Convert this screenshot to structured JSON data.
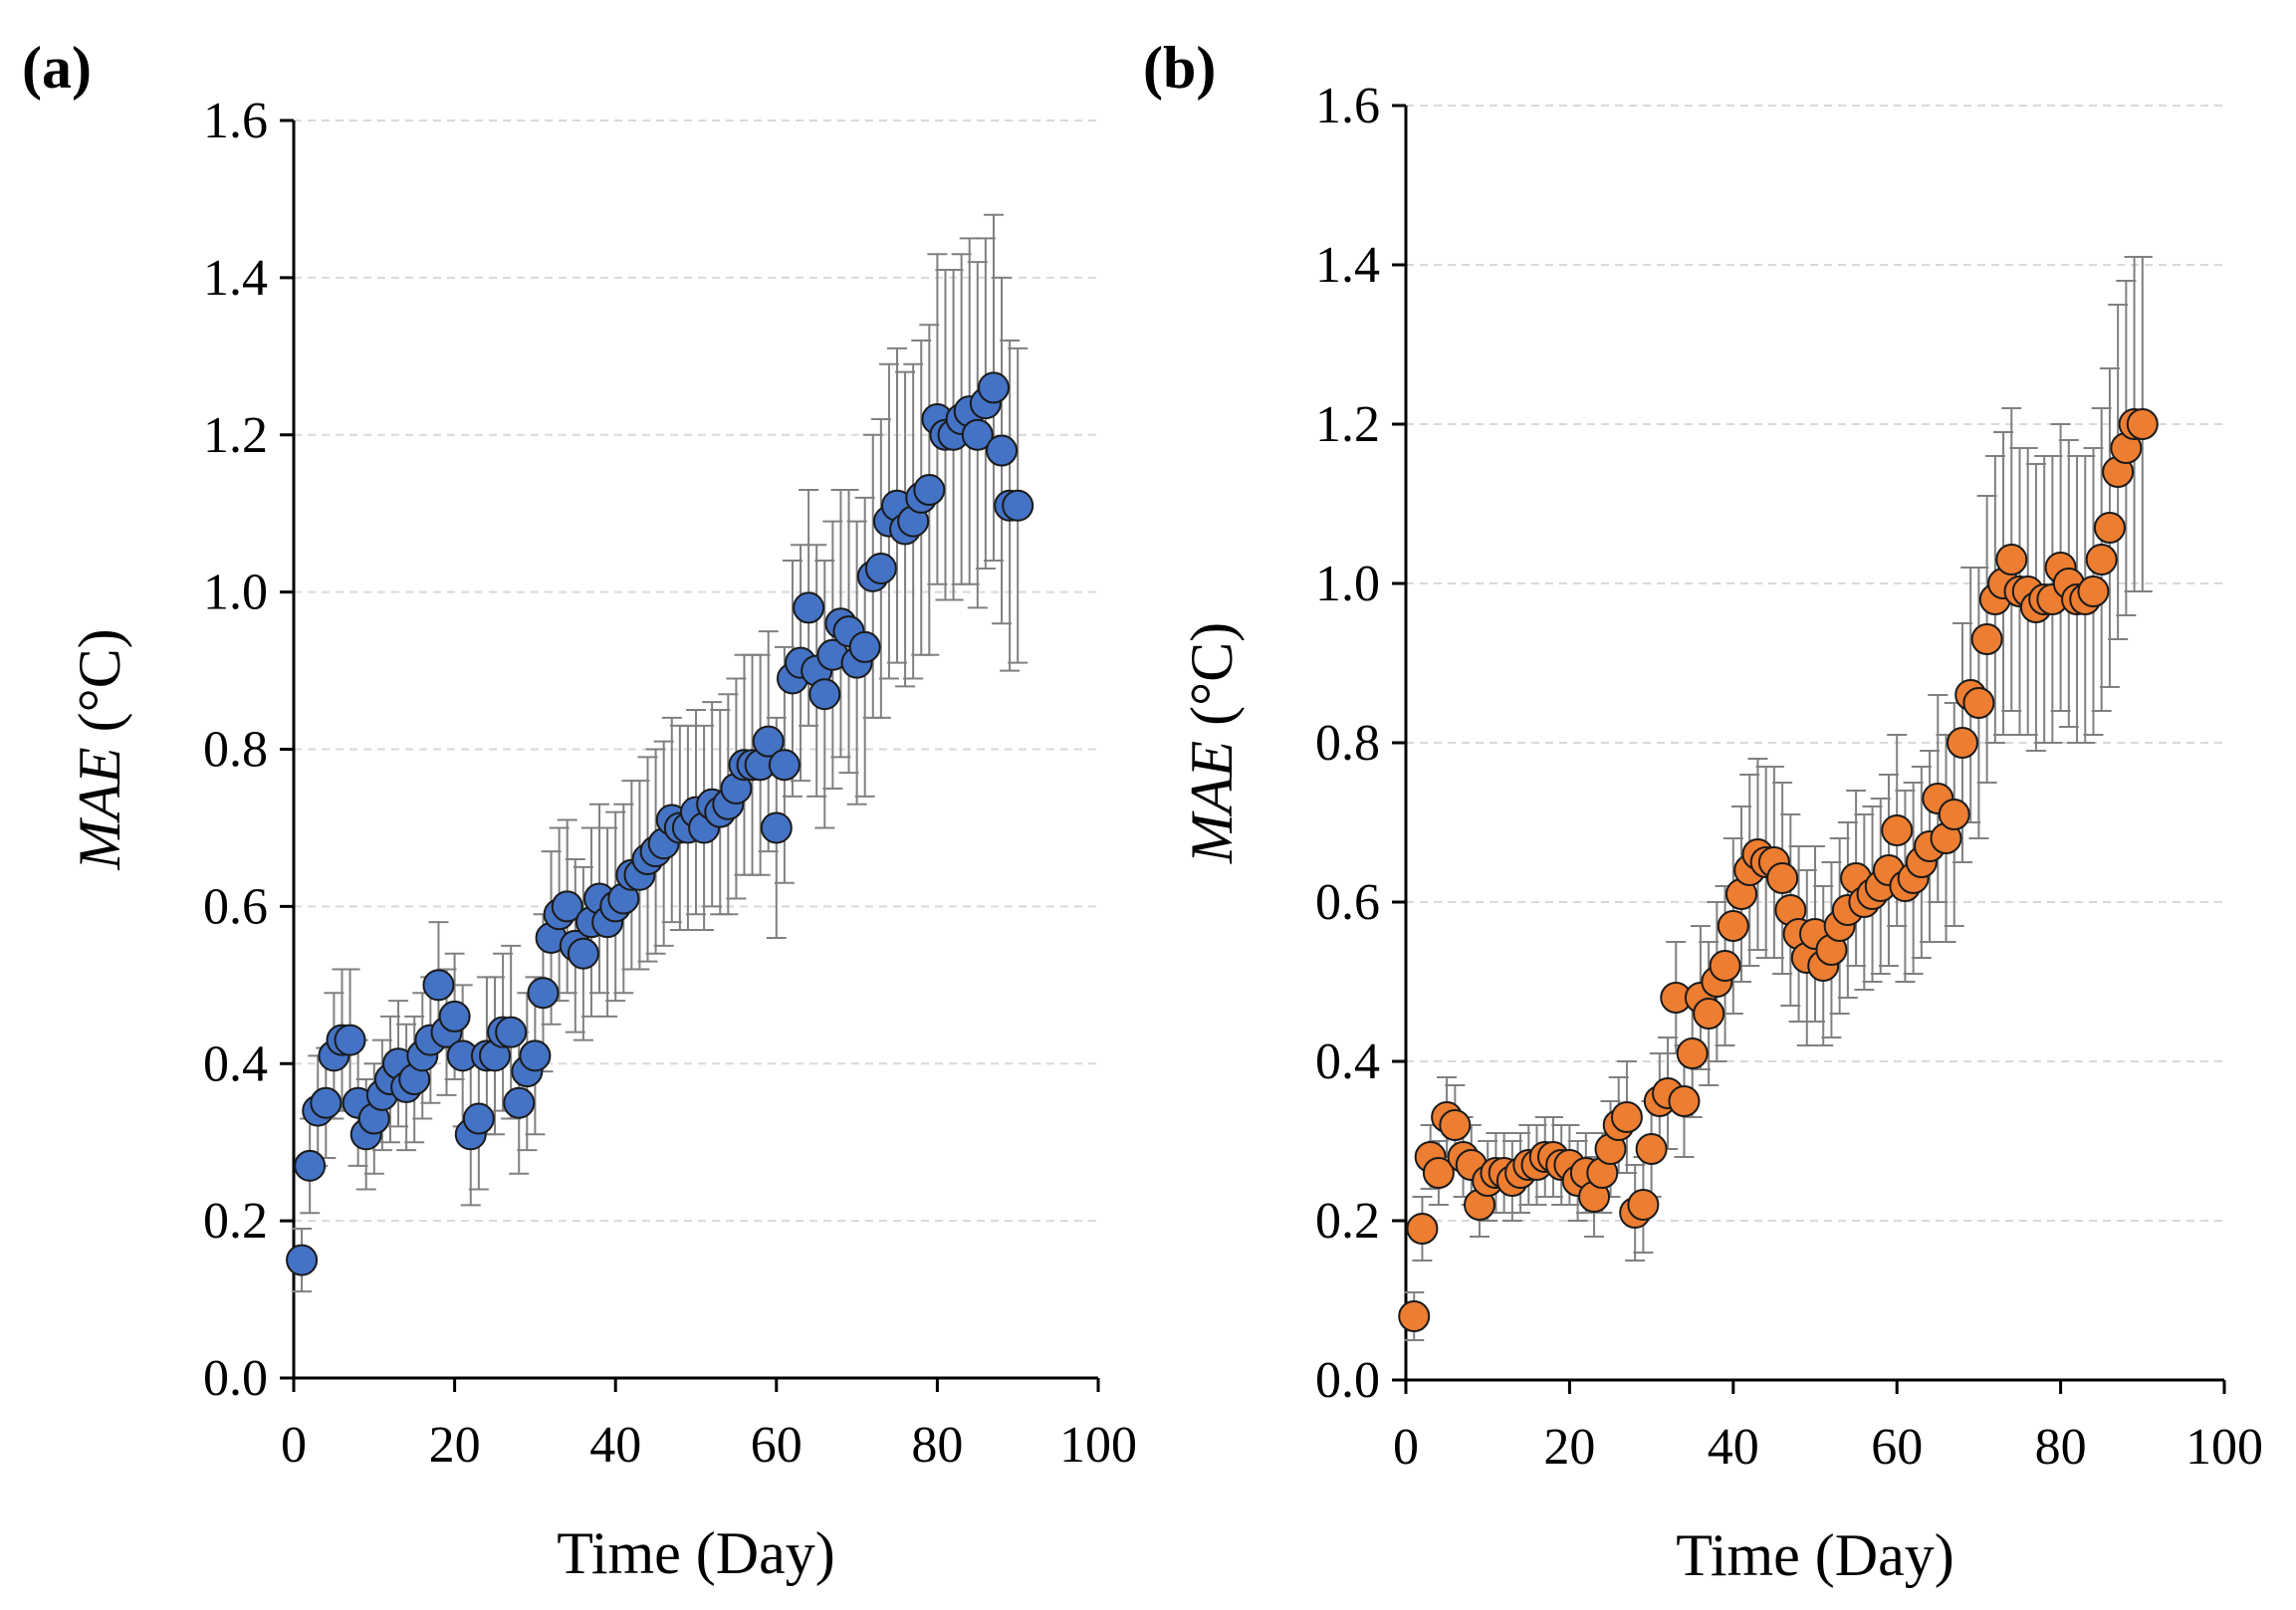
{
  "colors": {
    "series_a": "#4472C4",
    "series_b": "#ED7D31",
    "marker_edge": "#1a1a1a",
    "error_bar": "#808080",
    "grid": "#d9d9d9",
    "axis": "#000000"
  },
  "chart_data": [
    {
      "type": "scatter",
      "panel_label": "(a)",
      "xlabel": "Time (Day)",
      "ylabel_var": "MAE",
      "ylabel_unit": " (°C)",
      "xlim": [
        0,
        100
      ],
      "ylim": [
        0,
        1.6
      ],
      "xticks": [
        "0",
        "20",
        "40",
        "60",
        "80",
        "100"
      ],
      "yticks": [
        "0.0",
        "0.2",
        "0.4",
        "0.6",
        "0.8",
        "1.0",
        "1.2",
        "1.4",
        "1.6"
      ],
      "grid": "horizontal dashed",
      "series": [
        {
          "name": "MAE",
          "color": "#4472C4",
          "x": [
            1,
            2,
            3,
            4,
            5,
            6,
            7,
            8,
            9,
            10,
            11,
            12,
            13,
            14,
            15,
            16,
            17,
            18,
            19,
            20,
            21,
            22,
            23,
            24,
            25,
            26,
            27,
            28,
            29,
            30,
            31,
            32,
            33,
            34,
            35,
            36,
            37,
            38,
            39,
            40,
            41,
            42,
            43,
            44,
            45,
            46,
            47,
            48,
            49,
            50,
            51,
            52,
            53,
            54,
            55,
            56,
            57,
            58,
            59,
            60,
            61,
            62,
            63,
            64,
            65,
            66,
            67,
            68,
            69,
            70,
            71,
            72,
            73,
            74,
            75,
            76,
            77,
            78,
            79,
            80,
            81,
            82,
            83,
            84,
            85,
            86,
            87,
            88,
            89,
            90
          ],
          "y": [
            0.15,
            0.27,
            0.34,
            0.35,
            0.41,
            0.43,
            0.43,
            0.35,
            0.31,
            0.33,
            0.36,
            0.38,
            0.4,
            0.37,
            0.38,
            0.41,
            0.43,
            0.5,
            0.44,
            0.46,
            0.41,
            0.31,
            0.33,
            0.41,
            0.41,
            0.44,
            0.44,
            0.35,
            0.39,
            0.41,
            0.49,
            0.56,
            0.59,
            0.6,
            0.55,
            0.54,
            0.58,
            0.61,
            0.58,
            0.6,
            0.61,
            0.64,
            0.64,
            0.66,
            0.67,
            0.68,
            0.71,
            0.7,
            0.7,
            0.72,
            0.7,
            0.73,
            0.72,
            0.73,
            0.75,
            0.78,
            0.78,
            0.78,
            0.81,
            0.7,
            0.78,
            0.89,
            0.91,
            0.98,
            0.9,
            0.87,
            0.92,
            0.96,
            0.95,
            0.91,
            0.93,
            1.02,
            1.03,
            1.09,
            1.11,
            1.08,
            1.09,
            1.12,
            1.13,
            1.22,
            1.2,
            1.2,
            1.22,
            1.23,
            1.2,
            1.24,
            1.26,
            1.18,
            1.11,
            1.11
          ],
          "err": [
            0.04,
            0.06,
            0.07,
            0.07,
            0.08,
            0.09,
            0.09,
            0.08,
            0.07,
            0.07,
            0.07,
            0.08,
            0.08,
            0.08,
            0.08,
            0.08,
            0.08,
            0.08,
            0.08,
            0.08,
            0.09,
            0.09,
            0.09,
            0.1,
            0.1,
            0.1,
            0.11,
            0.09,
            0.1,
            0.1,
            0.1,
            0.11,
            0.11,
            0.11,
            0.11,
            0.11,
            0.12,
            0.12,
            0.12,
            0.12,
            0.12,
            0.12,
            0.12,
            0.13,
            0.13,
            0.13,
            0.13,
            0.13,
            0.13,
            0.13,
            0.13,
            0.13,
            0.13,
            0.14,
            0.14,
            0.14,
            0.14,
            0.14,
            0.14,
            0.14,
            0.15,
            0.15,
            0.15,
            0.15,
            0.16,
            0.17,
            0.17,
            0.17,
            0.18,
            0.18,
            0.19,
            0.18,
            0.19,
            0.2,
            0.2,
            0.2,
            0.2,
            0.2,
            0.21,
            0.21,
            0.21,
            0.21,
            0.21,
            0.22,
            0.22,
            0.21,
            0.22,
            0.22,
            0.21,
            0.2
          ]
        }
      ]
    },
    {
      "type": "scatter",
      "panel_label": "(b)",
      "xlabel": "Time (Day)",
      "ylabel_var": "MAE",
      "ylabel_unit": " (°C)",
      "xlim": [
        0,
        100
      ],
      "ylim": [
        0,
        1.6
      ],
      "xticks": [
        "0",
        "20",
        "40",
        "60",
        "80",
        "100"
      ],
      "yticks": [
        "0.0",
        "0.2",
        "0.4",
        "0.6",
        "0.8",
        "1.0",
        "1.2",
        "1.4",
        "1.6"
      ],
      "grid": "horizontal dashed",
      "series": [
        {
          "name": "MAE",
          "color": "#ED7D31",
          "x": [
            1,
            2,
            3,
            4,
            5,
            6,
            7,
            8,
            9,
            10,
            11,
            12,
            13,
            14,
            15,
            16,
            17,
            18,
            19,
            20,
            21,
            22,
            23,
            24,
            25,
            26,
            27,
            28,
            29,
            30,
            31,
            32,
            33,
            34,
            35,
            36,
            37,
            38,
            39,
            40,
            41,
            42,
            43,
            44,
            45,
            46,
            47,
            48,
            49,
            50,
            51,
            52,
            53,
            54,
            55,
            56,
            57,
            58,
            59,
            60,
            61,
            62,
            63,
            64,
            65,
            66,
            67,
            68,
            69,
            70,
            71,
            72,
            73,
            74,
            75,
            76,
            77,
            78,
            79,
            80,
            81,
            82,
            83,
            84,
            85,
            86,
            87,
            88,
            89,
            90
          ],
          "y": [
            0.08,
            0.19,
            0.28,
            0.26,
            0.33,
            0.32,
            0.28,
            0.27,
            0.22,
            0.25,
            0.26,
            0.26,
            0.25,
            0.26,
            0.27,
            0.27,
            0.28,
            0.28,
            0.27,
            0.27,
            0.25,
            0.26,
            0.23,
            0.26,
            0.29,
            0.32,
            0.33,
            0.21,
            0.22,
            0.29,
            0.35,
            0.36,
            0.48,
            0.35,
            0.41,
            0.48,
            0.46,
            0.5,
            0.52,
            0.57,
            0.61,
            0.64,
            0.66,
            0.65,
            0.65,
            0.63,
            0.59,
            0.56,
            0.53,
            0.56,
            0.52,
            0.54,
            0.57,
            0.59,
            0.63,
            0.6,
            0.61,
            0.62,
            0.64,
            0.69,
            0.62,
            0.63,
            0.65,
            0.67,
            0.73,
            0.68,
            0.71,
            0.8,
            0.86,
            0.85,
            0.93,
            0.98,
            1.0,
            1.03,
            0.99,
            0.99,
            0.97,
            0.98,
            0.98,
            1.02,
            1.0,
            0.98,
            0.98,
            0.99,
            1.03,
            1.07,
            1.14,
            1.17,
            1.2,
            1.2
          ],
          "err": [
            0.03,
            0.04,
            0.04,
            0.04,
            0.05,
            0.05,
            0.05,
            0.05,
            0.04,
            0.05,
            0.05,
            0.05,
            0.05,
            0.05,
            0.05,
            0.05,
            0.05,
            0.05,
            0.05,
            0.05,
            0.05,
            0.05,
            0.05,
            0.05,
            0.06,
            0.06,
            0.07,
            0.06,
            0.06,
            0.06,
            0.06,
            0.07,
            0.07,
            0.07,
            0.08,
            0.09,
            0.09,
            0.1,
            0.1,
            0.11,
            0.11,
            0.12,
            0.12,
            0.12,
            0.12,
            0.12,
            0.12,
            0.11,
            0.11,
            0.11,
            0.1,
            0.11,
            0.11,
            0.11,
            0.11,
            0.11,
            0.11,
            0.11,
            0.12,
            0.12,
            0.12,
            0.12,
            0.12,
            0.12,
            0.13,
            0.13,
            0.14,
            0.15,
            0.16,
            0.17,
            0.18,
            0.18,
            0.19,
            0.19,
            0.18,
            0.18,
            0.18,
            0.18,
            0.18,
            0.18,
            0.18,
            0.18,
            0.18,
            0.18,
            0.19,
            0.2,
            0.21,
            0.21,
            0.21,
            0.21
          ]
        }
      ]
    }
  ]
}
